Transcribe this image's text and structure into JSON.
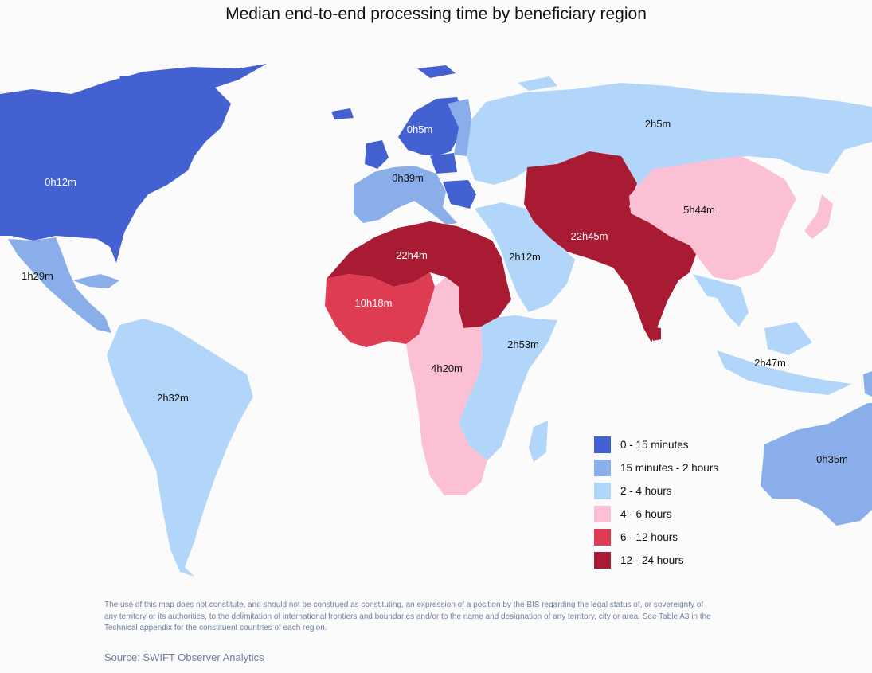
{
  "title": "Median end-to-end processing time by beneficiary region",
  "colors": {
    "c1": "#4361d0",
    "c2": "#8aaee9",
    "c3": "#b2d6fa",
    "c4": "#fbc0d4",
    "c5": "#de3c52",
    "c6": "#a91a33"
  },
  "legend": [
    {
      "label": "0 - 15 minutes",
      "color": "#4361d0"
    },
    {
      "label": "15 minutes - 2 hours",
      "color": "#8aaee9"
    },
    {
      "label": "2 - 4 hours",
      "color": "#b2d6fa"
    },
    {
      "label": "4 - 6 hours",
      "color": "#fbc0d4"
    },
    {
      "label": "6 - 12 hours",
      "color": "#de3c52"
    },
    {
      "label": "12 - 24 hours",
      "color": "#a91a33"
    }
  ],
  "regions": {
    "north_america": {
      "value": "0h12m"
    },
    "central_america": {
      "value": "1h29m"
    },
    "south_america": {
      "value": "2h32m"
    },
    "northern_europe": {
      "value": "0h5m"
    },
    "western_europe": {
      "value": "0h39m"
    },
    "north_asia": {
      "value": "2h5m"
    },
    "middle_east": {
      "value": "2h12m"
    },
    "central_south_asia": {
      "value": "22h45m"
    },
    "east_asia": {
      "value": "5h44m"
    },
    "north_africa": {
      "value": "22h4m"
    },
    "west_africa": {
      "value": "10h18m"
    },
    "east_africa": {
      "value": "2h53m"
    },
    "southern_central_africa": {
      "value": "4h20m"
    },
    "southeast_asia": {
      "value": "2h47m"
    },
    "oceania": {
      "value": "0h35m"
    }
  },
  "disclaimer": "The use of this map does not constitute, and should not be construed as constituting, an expression of a position by the BIS regarding the legal status of, or sovereignty of any territory or its authorities, to the delimitation of international frontiers and boundaries and/or to the name and designation of any territory, city or area. See Table A3 in the Technical appendix for the constituent countries of each region.",
  "source": "Source: SWIFT Observer Analytics"
}
